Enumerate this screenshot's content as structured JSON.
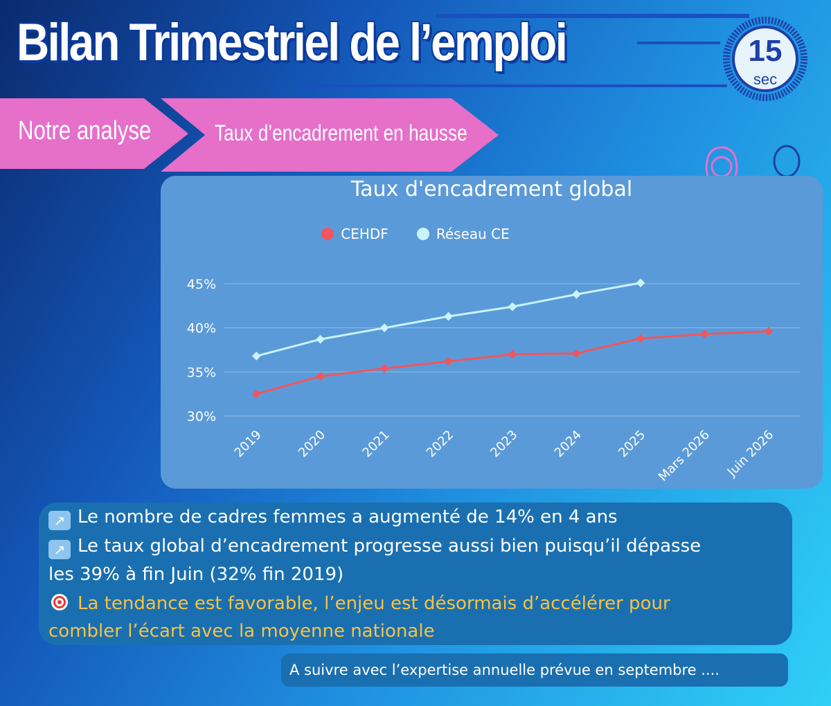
{
  "title": "Bilan Trimestriel de l’emploi",
  "timer": {
    "value": "15",
    "unit": "sec"
  },
  "breadcrumb": {
    "section": "Notre analyse",
    "topic": "Taux d’encadrement en hausse"
  },
  "colors": {
    "pink": "#e66fc9",
    "cehdf": "#f0565d",
    "reseau": "#c9f3ff",
    "dark_blue": "#1e3fa8",
    "note_highlight": "#f6c343"
  },
  "icons": {
    "woman": "woman-avatar-icon",
    "man": "man-avatar-icon",
    "arrow": "arrow-up-right-icon",
    "target": "target-icon"
  },
  "chart_data": {
    "type": "line",
    "title": "Taux d'encadrement global",
    "categories": [
      "2019",
      "2020",
      "2021",
      "2022",
      "2023",
      "2024",
      "2025",
      "Mars 2026",
      "Juin 2026"
    ],
    "series": [
      {
        "name": "CEHDF",
        "values": [
          32.5,
          34.5,
          35.4,
          36.2,
          37.0,
          37.1,
          38.8,
          39.3,
          39.6
        ]
      },
      {
        "name": "Réseau CE",
        "values": [
          36.8,
          38.7,
          40.0,
          41.3,
          42.4,
          43.8,
          45.1,
          null,
          null
        ]
      }
    ],
    "yticks": [
      "30%",
      "35%",
      "40%",
      "45%"
    ],
    "ylim": [
      30,
      45
    ],
    "grid": true,
    "legend": "top"
  },
  "notes": [
    {
      "text": "Le nombre de cadres femmes a augmenté de 14% en 4 ans"
    },
    {
      "line1": "Le taux global d’encadrement progresse aussi bien puisqu’il dépasse",
      "line2": "les 39% à fin Juin (32% fin 2019)"
    },
    {
      "line1": "La tendance est favorable, l’enjeu est désormais d’accélérer pour",
      "line2": "combler l’écart avec la moyenne nationale"
    }
  ],
  "footer": "A suivre avec l’expertise annuelle prévue en septembre ...."
}
